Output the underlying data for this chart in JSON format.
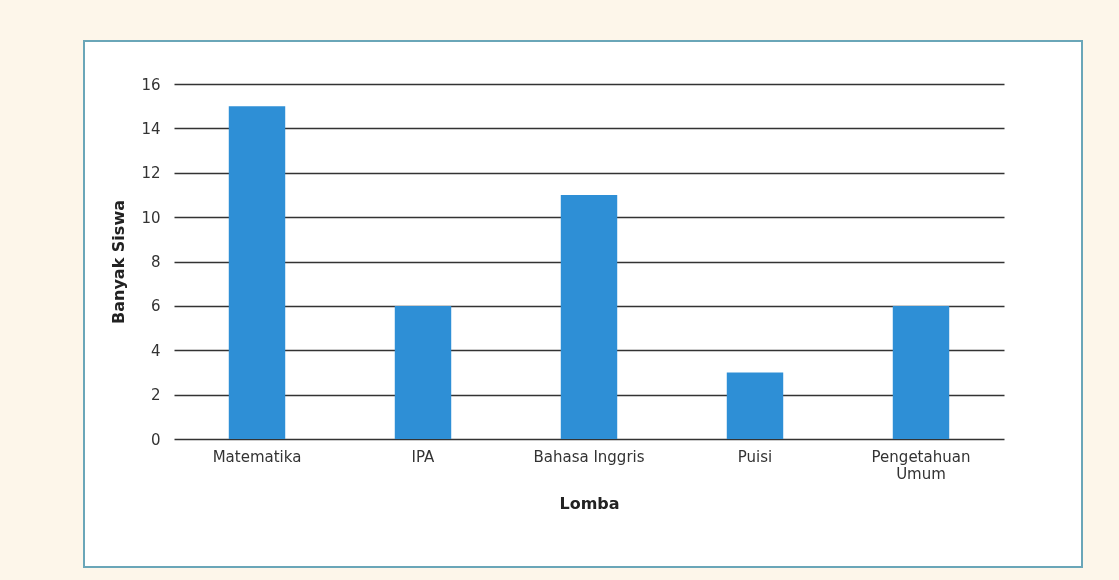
{
  "chart_data": {
    "type": "bar",
    "xlabel": "Lomba",
    "ylabel": "Banyak Siswa",
    "categories": [
      "Matematika",
      "IPA",
      "Bahasa Inggris",
      "Puisi",
      "Pengetahuan Umum"
    ],
    "values": [
      15,
      6,
      11,
      3,
      6
    ],
    "color": "#2e8fd6",
    "ylim": [
      0,
      16
    ],
    "yticks": [
      0,
      2,
      4,
      6,
      8,
      10,
      12,
      14,
      16
    ],
    "grid": "y"
  }
}
